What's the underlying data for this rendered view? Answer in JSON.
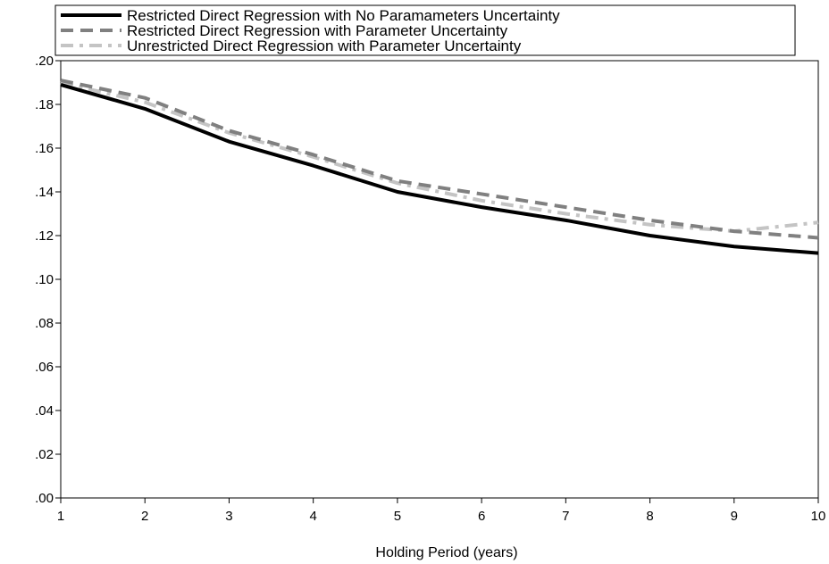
{
  "chart_data": {
    "type": "line",
    "title": "",
    "xlabel": "Holding Period (years)",
    "ylabel": "",
    "x": [
      1,
      2,
      3,
      4,
      5,
      6,
      7,
      8,
      9,
      10
    ],
    "xlim": [
      1,
      10
    ],
    "ylim": [
      0.0,
      0.2
    ],
    "x_ticks": [
      "1",
      "2",
      "3",
      "4",
      "5",
      "6",
      "7",
      "8",
      "9",
      "10"
    ],
    "y_ticks": [
      ".00",
      ".02",
      ".04",
      ".06",
      ".08",
      ".10",
      ".12",
      ".14",
      ".16",
      ".18",
      ".20"
    ],
    "grid": false,
    "legend_position": "top",
    "series": [
      {
        "name": "Restricted Direct Regression with No Paramameters Uncertainty",
        "color": "#000000",
        "style": "solid",
        "values": [
          0.189,
          0.178,
          0.163,
          0.152,
          0.14,
          0.133,
          0.127,
          0.12,
          0.115,
          0.112
        ]
      },
      {
        "name": "Restricted Direct Regression with Parameter Uncertainty",
        "color": "#808080",
        "style": "dash",
        "values": [
          0.191,
          0.183,
          0.168,
          0.157,
          0.145,
          0.139,
          0.133,
          0.127,
          0.122,
          0.119
        ]
      },
      {
        "name": "Unrestricted Direct Regression with Parameter Uncertainty",
        "color": "#c4c4c4",
        "style": "dash-dot",
        "values": [
          0.19,
          0.181,
          0.167,
          0.156,
          0.144,
          0.136,
          0.13,
          0.125,
          0.122,
          0.126
        ]
      }
    ]
  }
}
